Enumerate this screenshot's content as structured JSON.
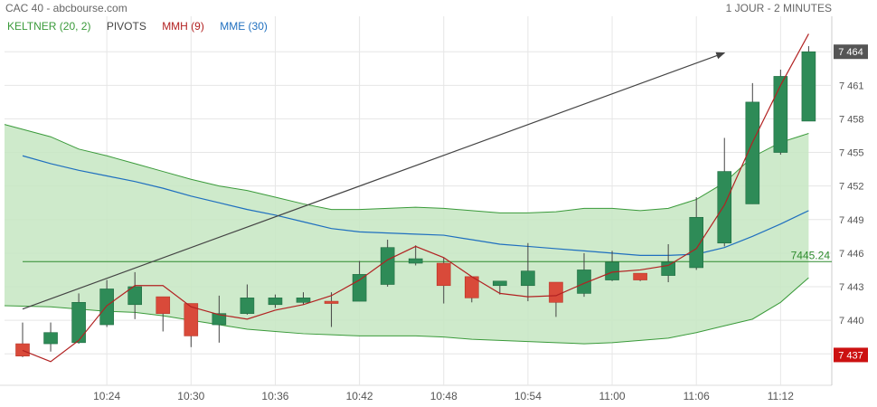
{
  "header": {
    "title": "CAC 40 - abcbourse.com",
    "period": "1 JOUR - 2 MINUTES"
  },
  "legend": [
    {
      "label": "KELTNER (20, 2)",
      "color": "#3a9a3a"
    },
    {
      "label": "PIVOTS",
      "color": "#444444"
    },
    {
      "label": "MMH (9)",
      "color": "#b22222"
    },
    {
      "label": "MME (30)",
      "color": "#1f6fbf"
    }
  ],
  "colors": {
    "up": "#2e8b57",
    "down": "#d94a3a",
    "keltner_fill": "#c6e6c2",
    "keltner_line": "#3a9a3a",
    "mmh": "#b22222",
    "mme": "#1f6fbf",
    "pivot": "#2e8b2e",
    "trend": "#444444",
    "grid": "#e6e6e6",
    "last_tag_bg": "#555555",
    "low_tag_bg": "#cc1111"
  },
  "chart_data": {
    "type": "candlestick",
    "title": "CAC 40 - abcbourse.com",
    "interval": "2 minutes",
    "ylim": [
      7435.5,
      7466.2
    ],
    "y_ticks": [
      "7 437",
      "7 440",
      "7 443",
      "7 446",
      "7 449",
      "7 452",
      "7 455",
      "7 458",
      "7 461",
      "7 464"
    ],
    "x_ticks": [
      "10:24",
      "10:30",
      "10:36",
      "10:42",
      "10:48",
      "10:54",
      "11:00",
      "11:06",
      "11:12"
    ],
    "candles": [
      {
        "time": "10:18",
        "open": 7437.9,
        "high": 7439.8,
        "low": 7436.7,
        "close": 7436.8
      },
      {
        "time": "10:20",
        "open": 7437.9,
        "high": 7439.8,
        "low": 7437.2,
        "close": 7438.9
      },
      {
        "time": "10:22",
        "open": 7438.0,
        "high": 7442.4,
        "low": 7437.9,
        "close": 7441.6
      },
      {
        "time": "10:24",
        "open": 7439.6,
        "high": 7443.6,
        "low": 7439.4,
        "close": 7442.8
      },
      {
        "time": "10:26",
        "open": 7441.4,
        "high": 7444.3,
        "low": 7440.1,
        "close": 7443.0
      },
      {
        "time": "10:28",
        "open": 7442.1,
        "high": 7442.1,
        "low": 7439.0,
        "close": 7440.6
      },
      {
        "time": "10:30",
        "open": 7441.5,
        "high": 7441.5,
        "low": 7437.6,
        "close": 7438.6
      },
      {
        "time": "10:32",
        "open": 7439.6,
        "high": 7442.2,
        "low": 7438.0,
        "close": 7440.6
      },
      {
        "time": "10:34",
        "open": 7440.6,
        "high": 7443.2,
        "low": 7440.5,
        "close": 7442.0
      },
      {
        "time": "10:36",
        "open": 7441.4,
        "high": 7442.3,
        "low": 7441.1,
        "close": 7442.0
      },
      {
        "time": "10:38",
        "open": 7441.6,
        "high": 7442.5,
        "low": 7441.4,
        "close": 7442.0
      },
      {
        "time": "10:40",
        "open": 7441.7,
        "high": 7442.5,
        "low": 7439.4,
        "close": 7441.5
      },
      {
        "time": "10:42",
        "open": 7441.7,
        "high": 7445.3,
        "low": 7441.7,
        "close": 7444.1
      },
      {
        "time": "10:44",
        "open": 7443.2,
        "high": 7447.2,
        "low": 7443.0,
        "close": 7446.5
      },
      {
        "time": "10:46",
        "open": 7445.1,
        "high": 7446.7,
        "low": 7444.9,
        "close": 7445.5
      },
      {
        "time": "10:48",
        "open": 7445.1,
        "high": 7445.6,
        "low": 7441.5,
        "close": 7443.1
      },
      {
        "time": "10:50",
        "open": 7443.9,
        "high": 7443.9,
        "low": 7441.6,
        "close": 7442.0
      },
      {
        "time": "10:52",
        "open": 7443.1,
        "high": 7443.4,
        "low": 7442.3,
        "close": 7443.5
      },
      {
        "time": "10:54",
        "open": 7443.1,
        "high": 7446.9,
        "low": 7441.7,
        "close": 7444.4
      },
      {
        "time": "10:56",
        "open": 7443.4,
        "high": 7443.4,
        "low": 7440.3,
        "close": 7441.6
      },
      {
        "time": "10:58",
        "open": 7442.4,
        "high": 7446.0,
        "low": 7442.1,
        "close": 7444.5
      },
      {
        "time": "11:00",
        "open": 7443.6,
        "high": 7446.2,
        "low": 7443.5,
        "close": 7445.2
      },
      {
        "time": "11:02",
        "open": 7444.2,
        "high": 7444.2,
        "low": 7443.5,
        "close": 7443.6
      },
      {
        "time": "11:04",
        "open": 7444.0,
        "high": 7446.8,
        "low": 7443.4,
        "close": 7445.2
      },
      {
        "time": "11:06",
        "open": 7444.7,
        "high": 7451.0,
        "low": 7444.5,
        "close": 7449.2
      },
      {
        "time": "11:08",
        "open": 7446.9,
        "high": 7456.3,
        "low": 7446.6,
        "close": 7453.3
      },
      {
        "time": "11:10",
        "open": 7450.4,
        "high": 7461.2,
        "low": 7450.4,
        "close": 7459.5
      },
      {
        "time": "11:12",
        "open": 7455.0,
        "high": 7462.4,
        "low": 7454.8,
        "close": 7461.8
      },
      {
        "time": "11:14",
        "open": 7457.8,
        "high": 7464.5,
        "low": 7457.8,
        "close": 7464.0
      }
    ],
    "series": [
      {
        "name": "KELTNER (20, 2)",
        "kind": "band",
        "upper": [
          7457.5,
          7456.4,
          7455.3,
          7454.7,
          7454.0,
          7453.3,
          7452.6,
          7452.0,
          7451.6,
          7451.0,
          7450.4,
          7449.9,
          7449.9,
          7450.0,
          7450.1,
          7450.0,
          7449.8,
          7449.6,
          7449.6,
          7449.7,
          7450.0,
          7450.0,
          7449.8,
          7450.0,
          7450.8,
          7452.3,
          7454.6,
          7455.9,
          7456.7
        ],
        "lower": [
          7441.3,
          7441.2,
          7441.0,
          7440.8,
          7440.7,
          7440.4,
          7440.0,
          7439.6,
          7439.2,
          7439.0,
          7438.8,
          7438.7,
          7438.6,
          7438.6,
          7438.6,
          7438.5,
          7438.3,
          7438.2,
          7438.1,
          7438.0,
          7437.9,
          7438.0,
          7438.2,
          7438.4,
          7438.9,
          7439.5,
          7440.1,
          7441.6,
          7443.8
        ]
      },
      {
        "name": "MME (30)",
        "kind": "line",
        "values": [
          7454.7,
          7454.0,
          7453.4,
          7452.9,
          7452.4,
          7451.8,
          7451.1,
          7450.5,
          7449.9,
          7449.4,
          7448.8,
          7448.2,
          7447.9,
          7447.8,
          7447.7,
          7447.6,
          7447.2,
          7446.8,
          7446.6,
          7446.4,
          7446.2,
          7446.0,
          7445.8,
          7445.8,
          7445.9,
          7446.5,
          7447.5,
          7448.6,
          7449.8
        ]
      },
      {
        "name": "MMH (9)",
        "kind": "line",
        "values": [
          7437.3,
          7436.3,
          7438.2,
          7441.3,
          7443.1,
          7443.1,
          7441.2,
          7440.5,
          7440.1,
          7440.9,
          7441.4,
          7442.2,
          7443.6,
          7445.4,
          7446.6,
          7445.6,
          7443.9,
          7442.4,
          7442.1,
          7442.2,
          7443.3,
          7444.3,
          7444.5,
          7444.9,
          7446.4,
          7450.3,
          7455.9,
          7461.0,
          7465.6
        ]
      },
      {
        "name": "PIVOTS",
        "kind": "level",
        "value": 7445.24,
        "label": "7445.24"
      }
    ],
    "trend_line": {
      "x": [
        "10:18",
        "11:08"
      ],
      "y": [
        7441.0,
        7463.9
      ]
    },
    "price_tags": [
      {
        "label": "7 464",
        "value": 7464.0,
        "kind": "last"
      },
      {
        "label": "7 437",
        "value": 7436.9,
        "kind": "low"
      }
    ]
  }
}
